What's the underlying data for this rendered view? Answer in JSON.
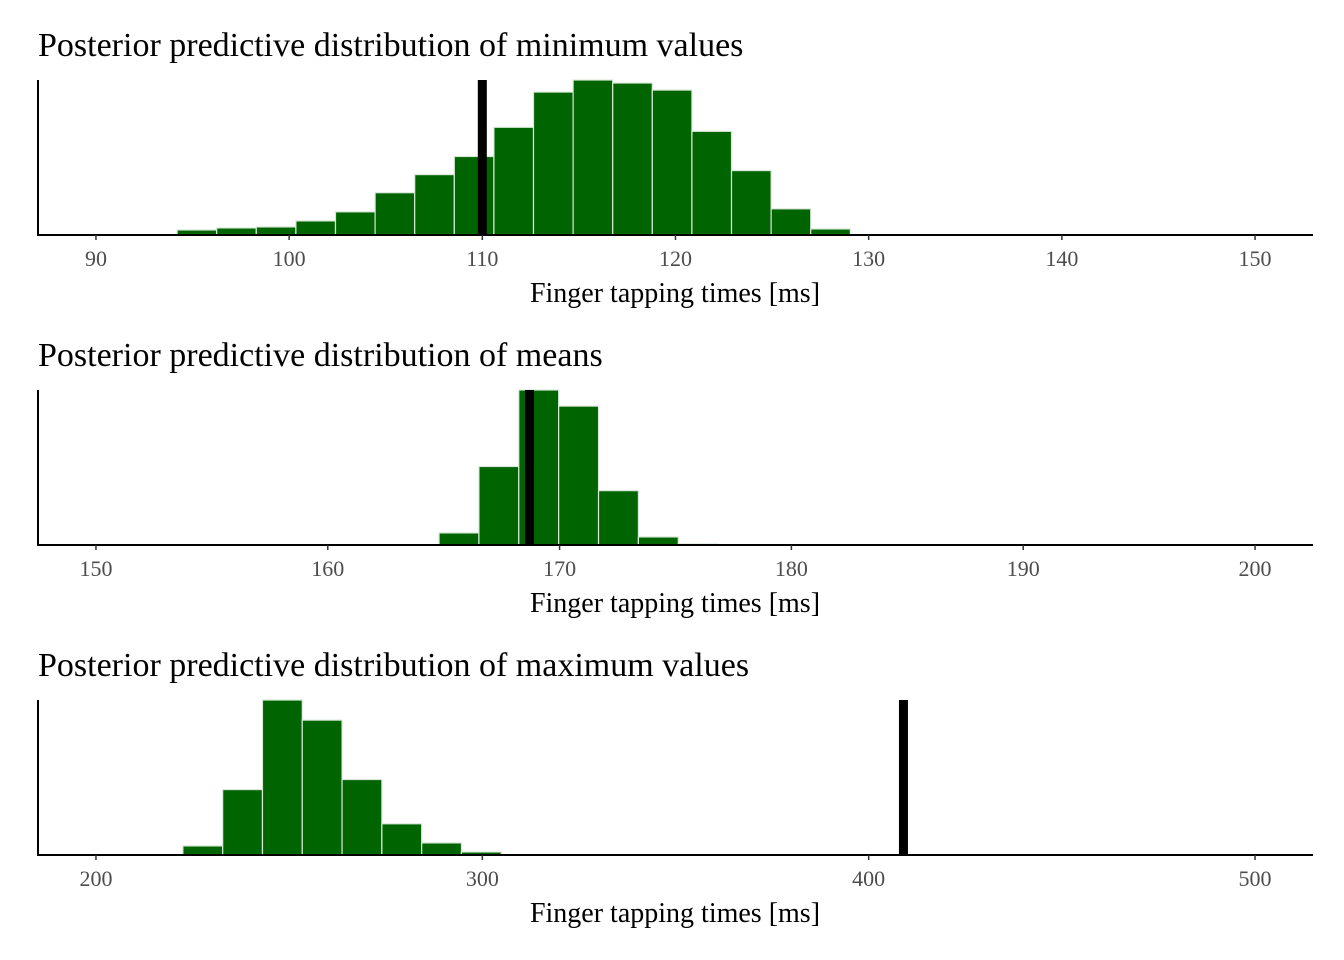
{
  "colors": {
    "bar_fill": "#006400",
    "observed_line": "#000000"
  },
  "chart_data": [
    {
      "type": "bar",
      "title": "Posterior predictive distribution of minimum values",
      "xlabel": "Finger tapping times [ms]",
      "ylabel": "",
      "xlim": [
        87,
        153
      ],
      "xticks": [
        90,
        100,
        110,
        120,
        130,
        140,
        150
      ],
      "bin_width": 2.05,
      "bin_starts": [
        94.2,
        96.25,
        98.3,
        100.35,
        102.4,
        104.45,
        106.5,
        108.55,
        110.6,
        112.65,
        114.7,
        116.75,
        118.8,
        120.85,
        122.9,
        124.95,
        127.0
      ],
      "values": [
        5,
        7,
        8,
        14,
        23,
        42,
        60,
        78,
        107,
        142,
        154,
        151,
        144,
        103,
        64,
        26,
        6
      ],
      "ymax": 154,
      "observed": 110,
      "grid": false,
      "legend": "none"
    },
    {
      "type": "bar",
      "title": "Posterior predictive distribution of means",
      "xlabel": "Finger tapping times [ms]",
      "ylabel": "",
      "xlim": [
        147.5,
        202.5
      ],
      "xticks": [
        150,
        160,
        170,
        180,
        190,
        200
      ],
      "bin_width": 1.72,
      "bin_starts": [
        164.8,
        166.52,
        168.24,
        169.96,
        171.68,
        173.4,
        175.12
      ],
      "values": [
        12,
        78,
        154,
        138,
        54,
        8,
        1
      ],
      "ymax": 154,
      "observed": 168.7,
      "grid": false,
      "legend": "none"
    },
    {
      "type": "bar",
      "title": "Posterior predictive distribution of maximum values",
      "xlabel": "Finger tapping times [ms]",
      "ylabel": "",
      "xlim": [
        185,
        515
      ],
      "xticks": [
        200,
        300,
        400,
        500
      ],
      "bin_width": 10.3,
      "bin_starts": [
        222.5,
        232.8,
        243.1,
        253.4,
        263.7,
        274.0,
        284.3,
        294.6
      ],
      "values": [
        9,
        65,
        154,
        134,
        75,
        31,
        12,
        3
      ],
      "ymax": 154,
      "observed": 409,
      "grid": false,
      "legend": "none"
    }
  ]
}
